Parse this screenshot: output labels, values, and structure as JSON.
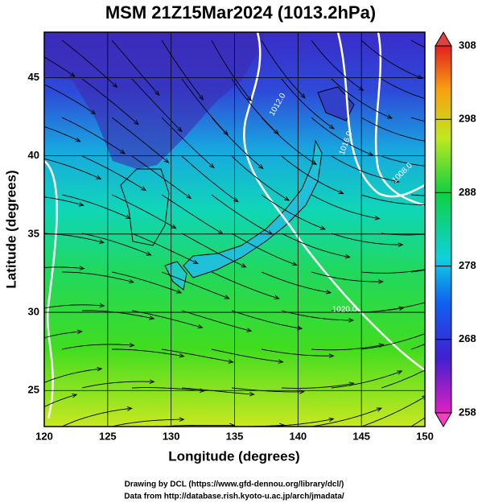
{
  "title": "MSM 21Z15Mar2024 (1013.2hPa)",
  "x_axis": {
    "label": "Longitude (degrees)",
    "lim": [
      120,
      150
    ],
    "ticks": [
      120,
      125,
      130,
      135,
      140,
      145,
      150
    ]
  },
  "y_axis": {
    "label": "Latitude (degrees)",
    "lim": [
      22.7,
      47.9
    ],
    "ticks": [
      25,
      30,
      35,
      40,
      45
    ]
  },
  "colorbar": {
    "lim": [
      258,
      308
    ],
    "ticks": [
      258,
      268,
      278,
      288,
      298,
      308
    ]
  },
  "contour_labels": [
    "1016.0",
    "1008.0",
    "1020.0",
    "1012.0"
  ],
  "footer": [
    "Drawing by DCL (https://www.gfd-dennou.org/library/dcl/)",
    "Data from http://database.rish.kyoto-u.ac.jp/arch/jmadata/"
  ]
}
